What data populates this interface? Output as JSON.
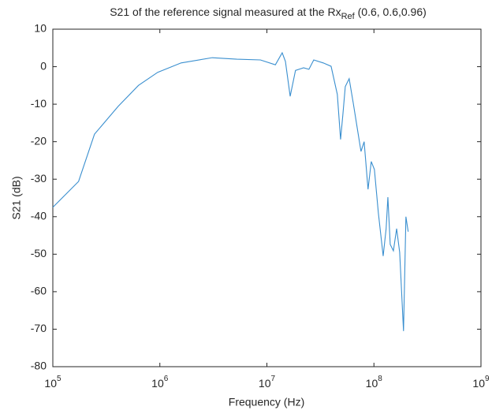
{
  "chart_data": {
    "type": "line",
    "title": {
      "main": "S21 of the reference signal measured at the Rx",
      "subscript": "Ref",
      "rest": " (0.6, 0.6,0.96)"
    },
    "x_label": "Frequency (Hz)",
    "y_label": "S21 (dB)",
    "x_scale": "log",
    "x": [
      100000,
      174000,
      245000,
      407000,
      631000,
      955000,
      1580000,
      3090000,
      5250000,
      8700000,
      12000000,
      13900000,
      14900000,
      16500000,
      18500000,
      22000000,
      24700000,
      27400000,
      33600000,
      39800000,
      45500000,
      48800000,
      51300000,
      54000000,
      58700000,
      64000000,
      69500000,
      75700000,
      81000000,
      88100000,
      94400000,
      101000000,
      110000000,
      122000000,
      130000000,
      135000000,
      142000000,
      152000000,
      163000000,
      174000000,
      189000000,
      199000000,
      209000000
    ],
    "series": [
      {
        "color": "#3a8fcf",
        "values": [
          -37.5,
          -30.6,
          -18,
          -10.6,
          -5,
          -1.5,
          1,
          2.4,
          2,
          1.8,
          0.5,
          3.7,
          1.4,
          -7.9,
          -1,
          -0.3,
          -0.7,
          1.8,
          1,
          0.1,
          -7.4,
          -19.4,
          -12.7,
          -5.3,
          -3.2,
          -9.6,
          -16,
          -22.6,
          -20,
          -32.7,
          -25.3,
          -27.4,
          -39,
          -50.5,
          -43.2,
          -34.8,
          -47.4,
          -49.1,
          -43.2,
          -49.5,
          -70.5,
          -40,
          -44
        ]
      }
    ],
    "xlim": [
      100000,
      1000000000
    ],
    "xticks": [
      {
        "value": 100000,
        "label": "10^5"
      },
      {
        "value": 1000000,
        "label": "10^6"
      },
      {
        "value": 10000000,
        "label": "10^7"
      },
      {
        "value": 100000000,
        "label": "10^8"
      },
      {
        "value": 1000000000,
        "label": "10^9"
      }
    ],
    "ylim": [
      -80,
      10
    ],
    "yticks": [
      -80,
      -70,
      -60,
      -50,
      -40,
      -30,
      -20,
      -10,
      0,
      10
    ],
    "grid": false
  }
}
